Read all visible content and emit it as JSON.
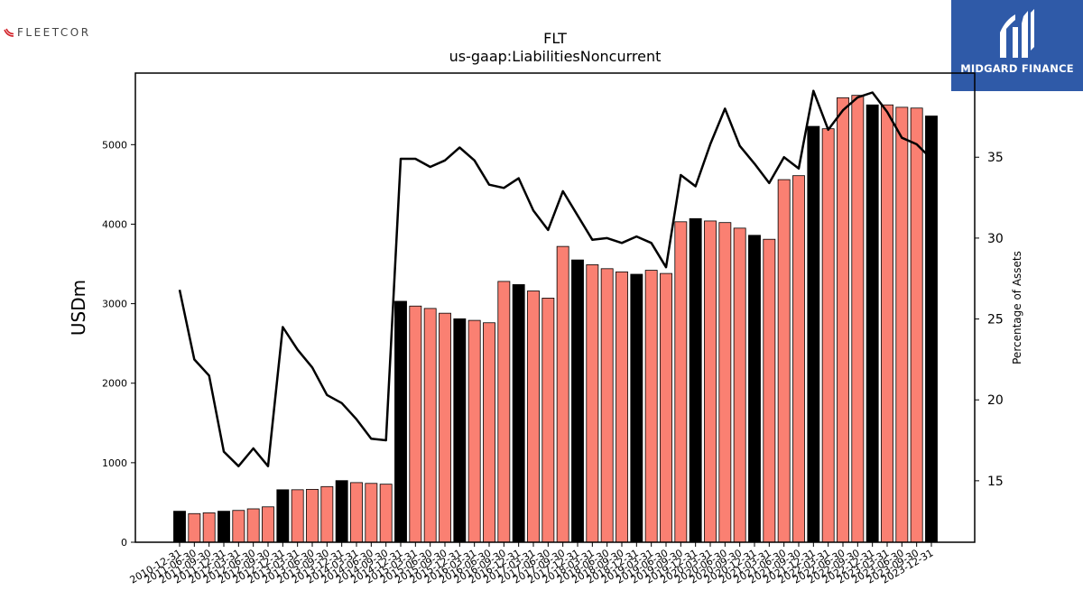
{
  "brand_left": "FLEETCOR",
  "brand_right": "MIDGARD FINANCE",
  "chart_data": {
    "type": "bar+line",
    "title": "FLT",
    "subtitle": "us-gaap:LiabilitiesNoncurrent",
    "ylabel": "USDm",
    "y2label": "Percentage of Assets",
    "ylim": [
      0,
      5900
    ],
    "y2lim": [
      11.2,
      40.2
    ],
    "yticks": [
      0,
      1000,
      2000,
      3000,
      4000,
      5000
    ],
    "y2ticks": [
      15,
      20,
      25,
      30,
      35
    ],
    "bar_colors": {
      "annual": "#000000",
      "quarterly": "#fa8072"
    },
    "line_color": "#000000",
    "grid": false,
    "categories": [
      "2010-12-31",
      "2011-06-30",
      "2011-09-30",
      "2011-12-31",
      "2012-03-31",
      "2012-06-30",
      "2012-09-30",
      "2012-12-31",
      "2013-03-31",
      "2013-06-30",
      "2013-09-30",
      "2013-12-31",
      "2014-03-31",
      "2014-06-30",
      "2014-09-30",
      "2014-12-31",
      "2015-03-31",
      "2015-06-30",
      "2015-09-30",
      "2015-12-31",
      "2016-03-31",
      "2016-06-30",
      "2016-09-30",
      "2016-12-31",
      "2017-03-31",
      "2017-06-30",
      "2017-09-30",
      "2017-12-31",
      "2018-03-31",
      "2018-06-30",
      "2018-09-30",
      "2018-12-31",
      "2019-03-31",
      "2019-06-30",
      "2019-09-30",
      "2019-12-31",
      "2020-03-31",
      "2020-06-30",
      "2020-09-30",
      "2020-12-31",
      "2021-03-31",
      "2021-06-30",
      "2021-09-30",
      "2021-12-31",
      "2022-03-31",
      "2022-06-30",
      "2022-09-30",
      "2022-12-31",
      "2023-03-31",
      "2023-06-30",
      "2023-09-30",
      "2023-12-31"
    ],
    "annual": [
      true,
      false,
      false,
      true,
      false,
      false,
      false,
      true,
      false,
      false,
      false,
      true,
      false,
      false,
      false,
      true,
      false,
      false,
      false,
      true,
      false,
      false,
      false,
      true,
      false,
      false,
      false,
      true,
      false,
      false,
      false,
      true,
      false,
      false,
      false,
      true,
      false,
      false,
      false,
      true,
      false,
      false,
      false,
      true,
      false,
      false,
      false,
      true,
      false,
      false,
      false,
      true
    ],
    "values": [
      390,
      360,
      370,
      390,
      400,
      420,
      445,
      660,
      660,
      665,
      700,
      775,
      750,
      740,
      730,
      3030,
      2970,
      2940,
      2880,
      2810,
      2790,
      2760,
      3280,
      3240,
      3160,
      3070,
      3720,
      3550,
      3490,
      3440,
      3400,
      3370,
      3420,
      3380,
      4030,
      4070,
      4040,
      4020,
      3950,
      3860,
      3810,
      4560,
      4610,
      5230,
      5200,
      5590,
      5620,
      5500,
      5500,
      5470,
      5460,
      5360
    ],
    "pct_of_assets": [
      26.8,
      22.5,
      21.5,
      16.8,
      15.9,
      17.0,
      15.9,
      24.5,
      23.1,
      22.0,
      20.3,
      19.8,
      18.8,
      17.6,
      17.5,
      34.9,
      34.9,
      34.4,
      34.8,
      35.6,
      34.8,
      33.3,
      33.1,
      33.7,
      31.7,
      30.5,
      32.9,
      31.4,
      29.9,
      30.0,
      29.7,
      30.1,
      29.7,
      28.2,
      33.9,
      33.2,
      35.8,
      38.0,
      35.7,
      34.6,
      33.4,
      35.0,
      34.3,
      39.1,
      36.7,
      37.9,
      38.7,
      39.0,
      37.8,
      36.2,
      35.8,
      34.9
    ]
  }
}
